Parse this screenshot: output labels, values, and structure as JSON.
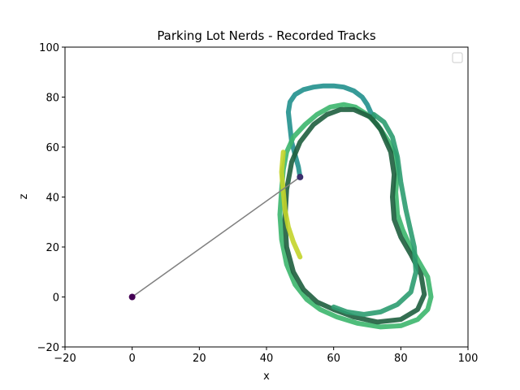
{
  "chart_data": {
    "type": "scatter",
    "title": "Parking Lot Nerds - Recorded Tracks",
    "xlabel": "x",
    "ylabel": "z",
    "xlim": [
      -20,
      100
    ],
    "ylim": [
      -20,
      100
    ],
    "xticks": [
      -20,
      0,
      20,
      40,
      60,
      80,
      100
    ],
    "yticks": [
      -20,
      0,
      20,
      40,
      60,
      80,
      100
    ],
    "tick_labels_x": [
      "−20",
      "0",
      "20",
      "40",
      "60",
      "80",
      "100"
    ],
    "tick_labels_y": [
      "−20",
      "0",
      "20",
      "40",
      "60",
      "80",
      "100"
    ],
    "grid": false,
    "legend": {
      "placement": "top-right",
      "entries": []
    },
    "connector_line": {
      "x": [
        0,
        50
      ],
      "z": [
        0,
        48
      ],
      "color": "#808080"
    },
    "markers": [
      {
        "x": 0,
        "z": 0,
        "color": "#440154"
      },
      {
        "x": 50,
        "z": 48,
        "color": "#3b2f6e"
      }
    ],
    "series": [
      {
        "color": "#21908d",
        "x": [
          50,
          49.5,
          48.5,
          47.5,
          47,
          46.5,
          47,
          48.5,
          51,
          54,
          57,
          60,
          63,
          66,
          68.5,
          70,
          71,
          72
        ],
        "z": [
          48,
          52,
          57,
          62,
          68,
          74,
          78,
          81,
          83,
          84,
          84.5,
          84.5,
          84,
          82.5,
          80,
          77,
          74,
          72
        ]
      },
      {
        "color": "#3cb66d",
        "x": [
          70,
          73,
          76,
          78.5,
          79,
          78.5,
          79,
          80.5,
          82.5,
          85,
          88,
          89,
          88,
          85,
          80,
          74,
          67,
          61,
          56,
          52,
          48.5,
          46,
          44.5,
          44,
          44.5,
          45,
          46,
          48,
          51.5,
          55,
          59,
          63,
          66.5,
          70
        ],
        "z": [
          73,
          69,
          63,
          57,
          50,
          42,
          33,
          27,
          21,
          15,
          8,
          0,
          -5,
          -9,
          -11.5,
          -12,
          -10.5,
          -8,
          -5,
          -1,
          5,
          13,
          23,
          33,
          43,
          51,
          58,
          64,
          69,
          73,
          76,
          77,
          76,
          73
        ]
      },
      {
        "color": "#1e5e3e",
        "x": [
          71,
          74,
          77,
          78,
          77.5,
          78,
          80,
          83,
          86,
          87,
          85,
          80,
          73,
          66,
          60,
          55,
          51,
          48,
          46,
          45.5,
          46,
          47.5,
          50,
          54,
          58,
          62,
          66,
          71
        ],
        "z": [
          72,
          67,
          58,
          49,
          40,
          31,
          24,
          17,
          9,
          1,
          -5,
          -9,
          -10,
          -8,
          -5,
          -2,
          3,
          10,
          20,
          31,
          43,
          54,
          62,
          69,
          73,
          75,
          75,
          72
        ]
      },
      {
        "color": "#c3d42a",
        "x": [
          45,
          44.5,
          45,
          45.5,
          46.5,
          48,
          50
        ],
        "z": [
          58,
          50,
          42,
          35,
          28,
          22,
          16
        ]
      },
      {
        "color": "#2c9c70",
        "x": [
          72,
          75,
          77.5,
          79,
          80,
          81.5,
          84,
          84.5,
          83,
          79,
          74,
          69,
          64,
          60
        ],
        "z": [
          73,
          70,
          64,
          56,
          46,
          35,
          20,
          10,
          2,
          -3,
          -6,
          -7,
          -6,
          -4
        ]
      }
    ]
  }
}
